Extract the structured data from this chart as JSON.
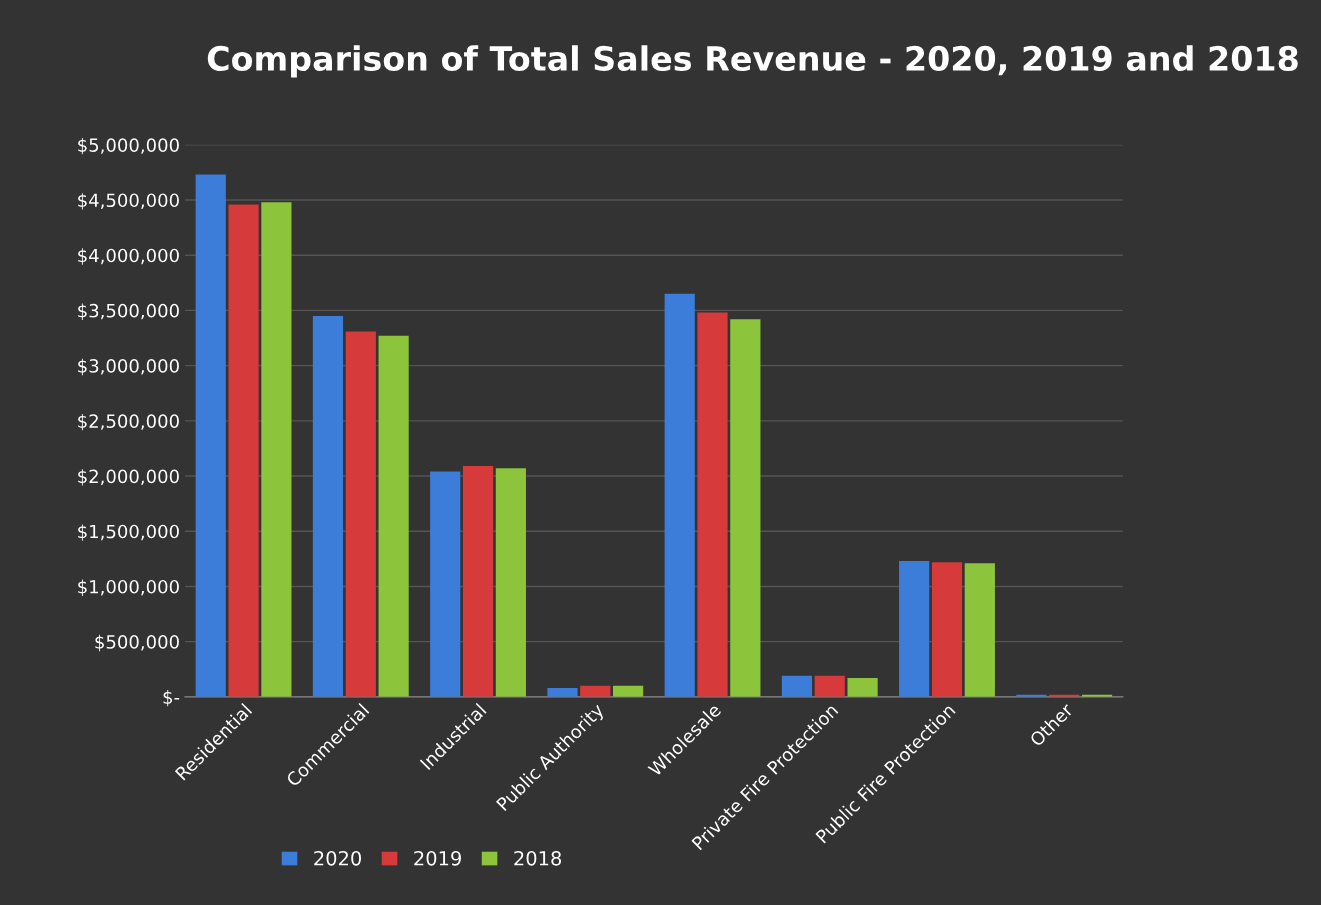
{
  "chart_data": {
    "type": "bar",
    "title": "Comparison of Total Sales Revenue - 2020, 2019 and 2018",
    "categories": [
      "Residential",
      "Commercial",
      "Industrial",
      "Public Authority",
      "Wholesale",
      "Private Fire Protection",
      "Public Fire Protection",
      "Other"
    ],
    "series": [
      {
        "name": "2020",
        "color": "#3b7dd8",
        "values": [
          4730000,
          3450000,
          2040000,
          80000,
          3650000,
          190000,
          1230000,
          20000
        ]
      },
      {
        "name": "2019",
        "color": "#d63a3a",
        "values": [
          4460000,
          3310000,
          2090000,
          100000,
          3480000,
          190000,
          1220000,
          20000
        ]
      },
      {
        "name": "2018",
        "color": "#8cc43c",
        "values": [
          4480000,
          3270000,
          2070000,
          100000,
          3420000,
          170000,
          1210000,
          20000
        ]
      }
    ],
    "ylim": [
      0,
      5000000
    ],
    "yticks": [
      {
        "value": 0,
        "label": "$-"
      },
      {
        "value": 500000,
        "label": "$500,000"
      },
      {
        "value": 1000000,
        "label": "$1,000,000"
      },
      {
        "value": 1500000,
        "label": "$1,500,000"
      },
      {
        "value": 2000000,
        "label": "$2,000,000"
      },
      {
        "value": 2500000,
        "label": "$2,500,000"
      },
      {
        "value": 3000000,
        "label": "$3,000,000"
      },
      {
        "value": 3500000,
        "label": "$3,500,000"
      },
      {
        "value": 4000000,
        "label": "$4,000,000"
      },
      {
        "value": 4500000,
        "label": "$4,500,000"
      },
      {
        "value": 5000000,
        "label": "$5,000,000"
      }
    ],
    "grid": "y",
    "legend": "bottom left"
  }
}
